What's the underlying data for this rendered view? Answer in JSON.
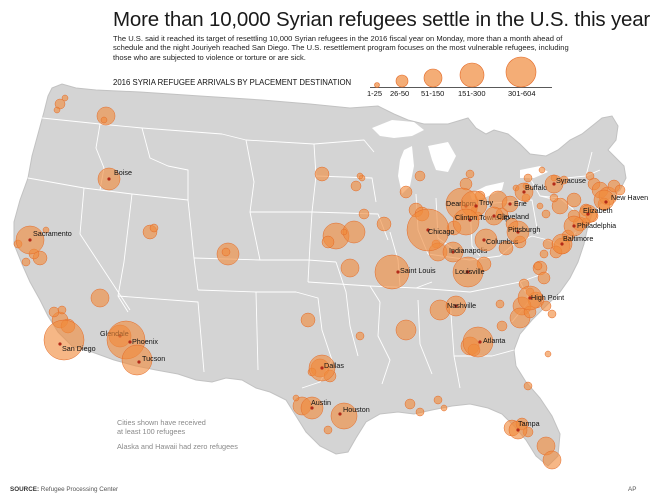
{
  "header": {
    "title": "More than 10,000 Syrian refugees settle in the U.S. this year",
    "subtitle": "The U.S. said it reached its target of resettling 10,000 Syrian refugees in the 2016 fiscal year on Monday, more than a month ahead of schedule and the night Jouriyeh reached San Diego. The U.S. resettlement program focuses on the most vulnerable refugees, including those who are subjected to violence or torture or are sick."
  },
  "legend": {
    "title": "2016 SYRIA REFUGEE ARRIVALS BY PLACEMENT DESTINATION",
    "classes": [
      "1-25",
      "26-50",
      "51-150",
      "151-300",
      "301-604"
    ]
  },
  "colors": {
    "land": "#d4d4d4",
    "border": "#ffffff",
    "bubble": "#f08a3c",
    "bubble_edge": "#e46a28",
    "dot": "#b32a18"
  },
  "cities": [
    {
      "name": "Boise",
      "size": 3
    },
    {
      "name": "Sacramento",
      "size": 4
    },
    {
      "name": "Glendale",
      "size": 3
    },
    {
      "name": "San Diego",
      "size": 5
    },
    {
      "name": "Phoenix",
      "size": 5
    },
    {
      "name": "Tucson",
      "size": 4
    },
    {
      "name": "Dallas",
      "size": 4
    },
    {
      "name": "Austin",
      "size": 3
    },
    {
      "name": "Houston",
      "size": 4
    },
    {
      "name": "Chicago",
      "size": 5
    },
    {
      "name": "Saint Louis",
      "size": 4
    },
    {
      "name": "Indianapolis",
      "size": 3
    },
    {
      "name": "Louisville",
      "size": 4
    },
    {
      "name": "Nashville",
      "size": 3
    },
    {
      "name": "Atlanta",
      "size": 4
    },
    {
      "name": "Dearborn",
      "size": 5
    },
    {
      "name": "Troy",
      "size": 4
    },
    {
      "name": "Clinton Township",
      "size": 4
    },
    {
      "name": "Cleveland",
      "size": 3
    },
    {
      "name": "Columbus",
      "size": 3
    },
    {
      "name": "Pittsburgh",
      "size": 3
    },
    {
      "name": "Erie",
      "size": 3
    },
    {
      "name": "Buffalo",
      "size": 3
    },
    {
      "name": "Syracuse",
      "size": 3
    },
    {
      "name": "New Haven",
      "size": 3
    },
    {
      "name": "Elizabeth",
      "size": 3
    },
    {
      "name": "Philadelphia",
      "size": 3
    },
    {
      "name": "Baltimore",
      "size": 3
    },
    {
      "name": "High Point",
      "size": 3
    },
    {
      "name": "Tampa",
      "size": 3
    }
  ],
  "notes": {
    "line1": "Cities shown have received",
    "line2": "at least 100 refugees",
    "line3": "Alaska and Hawaii had zero refugees"
  },
  "footer": {
    "source_label": "SOURCE:",
    "source_text": "Refugee Processing Center",
    "credit": "AP"
  }
}
